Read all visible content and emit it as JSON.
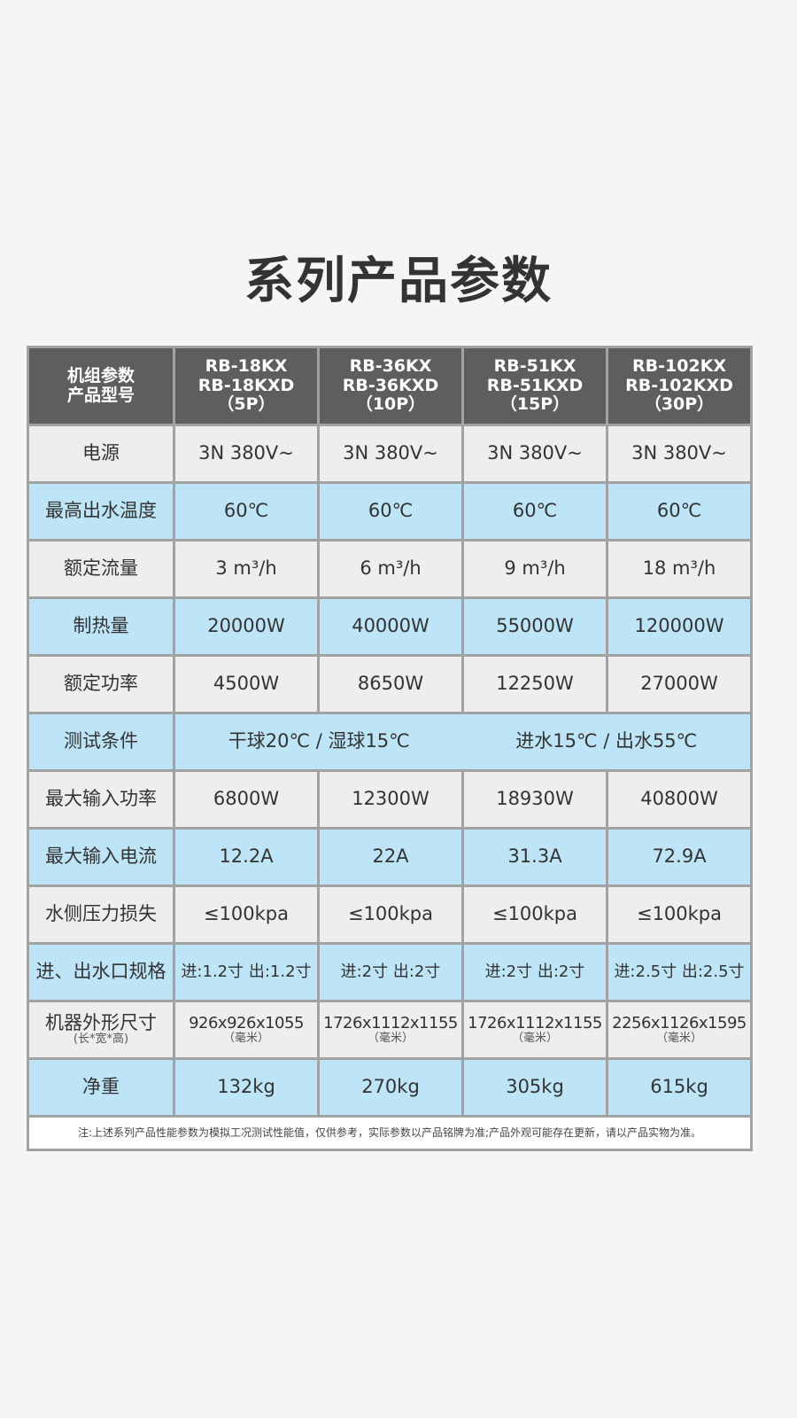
{
  "title": "系列产品参数",
  "header": {
    "label_line1": "机组参数",
    "label_line2": "产品型号",
    "models": [
      {
        "l1": "RB-18KX",
        "l2": "RB-18KXD",
        "l3": "（5P）"
      },
      {
        "l1": "RB-36KX",
        "l2": "RB-36KXD",
        "l3": "（10P）"
      },
      {
        "l1": "RB-51KX",
        "l2": "RB-51KXD",
        "l3": "（15P）"
      },
      {
        "l1": "RB-102KX",
        "l2": "RB-102KXD",
        "l3": "（30P）"
      }
    ]
  },
  "rows": [
    {
      "label": "电源",
      "values": [
        "3N 380V~",
        "3N 380V~",
        "3N 380V~",
        "3N 380V~"
      ]
    },
    {
      "label": "最高出水温度",
      "values": [
        "60℃",
        "60℃",
        "60℃",
        "60℃"
      ]
    },
    {
      "label": "额定流量",
      "values": [
        "3 m³/h",
        "6 m³/h",
        "9 m³/h",
        "18 m³/h"
      ]
    },
    {
      "label": "制热量",
      "values": [
        "20000W",
        "40000W",
        "55000W",
        "120000W"
      ]
    },
    {
      "label": "额定功率",
      "values": [
        "4500W",
        "8650W",
        "12250W",
        "27000W"
      ]
    }
  ],
  "test_row": {
    "label": "测试条件",
    "cond1": "干球20℃ / 湿球15℃",
    "cond2": "进水15℃ / 出水55℃"
  },
  "rows2": [
    {
      "label": "最大输入功率",
      "values": [
        "6800W",
        "12300W",
        "18930W",
        "40800W"
      ]
    },
    {
      "label": "最大输入电流",
      "values": [
        "12.2A",
        "22A",
        "31.3A",
        "72.9A"
      ]
    },
    {
      "label": "水侧压力损失",
      "values": [
        "≤100kpa",
        "≤100kpa",
        "≤100kpa",
        "≤100kpa"
      ]
    },
    {
      "label": "进、出水口规格",
      "values": [
        "进:1.2寸 出:1.2寸",
        "进:2寸  出:2寸",
        "进:2寸  出:2寸",
        "进:2.5寸 出:2.5寸"
      ]
    }
  ],
  "dim_row": {
    "label": "机器外形尺寸",
    "sublabel": "(长*宽*高)",
    "unit": "（毫米）",
    "values": [
      "926x926x1055",
      "1726x1112x1155",
      "1726x1112x1155",
      "2256x1126x1595"
    ]
  },
  "weight_row": {
    "label": "净重",
    "values": [
      "132kg",
      "270kg",
      "305kg",
      "615kg"
    ]
  },
  "note": "注:上述系列产品性能参数为模拟工况测试性能值，仅供参考，实际参数以产品铭牌为准;产品外观可能存在更新，请以产品实物为准。",
  "colors": {
    "header": "#5f5d5e",
    "light": "#eeeeef",
    "blue": "#bde4f7",
    "border": "#a2a2a2"
  }
}
